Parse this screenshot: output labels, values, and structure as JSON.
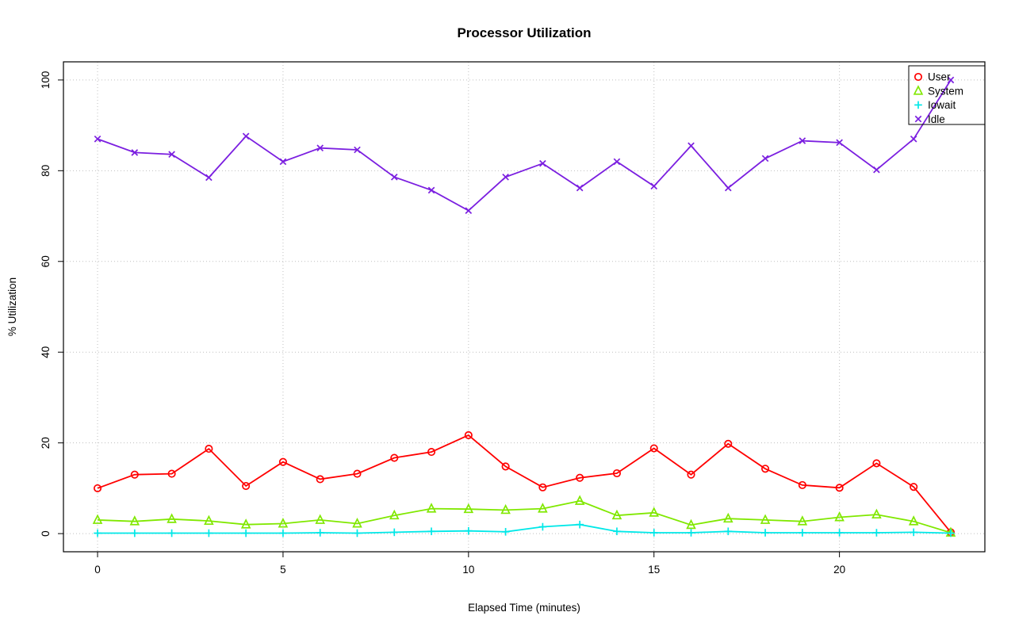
{
  "chart_data": {
    "type": "line",
    "title": "Processor Utilization",
    "xlabel": "Elapsed Time (minutes)",
    "ylabel": "% Utilization",
    "x": [
      0,
      1,
      2,
      3,
      4,
      5,
      6,
      7,
      8,
      9,
      10,
      11,
      12,
      13,
      14,
      15,
      16,
      17,
      18,
      19,
      20,
      21,
      22,
      23
    ],
    "series": [
      {
        "name": "User",
        "color": "#FF0000",
        "marker": "circle",
        "values": [
          10,
          13,
          13.2,
          18.7,
          10.5,
          15.8,
          12,
          13.2,
          16.7,
          18,
          21.7,
          14.8,
          10.2,
          12.3,
          13.3,
          18.8,
          13,
          19.8,
          14.3,
          10.7,
          10.1,
          15.5,
          10.3,
          0.3
        ]
      },
      {
        "name": "System",
        "color": "#80E800",
        "marker": "triangle",
        "values": [
          3,
          2.7,
          3.2,
          2.8,
          2,
          2.2,
          3,
          2.2,
          4,
          5.5,
          5.4,
          5.2,
          5.5,
          7.2,
          4,
          4.6,
          1.9,
          3.3,
          3,
          2.7,
          3.6,
          4.2,
          2.7,
          0.2
        ]
      },
      {
        "name": "Iowait",
        "color": "#00E8E8",
        "marker": "plus",
        "values": [
          0.1,
          0.1,
          0.1,
          0.1,
          0.1,
          0.1,
          0.2,
          0.1,
          0.3,
          0.5,
          0.6,
          0.4,
          1.5,
          2,
          0.5,
          0.2,
          0.2,
          0.5,
          0.2,
          0.2,
          0.2,
          0.2,
          0.3,
          0.1
        ]
      },
      {
        "name": "Idle",
        "color": "#7B1FE0",
        "marker": "x",
        "values": [
          87,
          84,
          83.6,
          78.5,
          87.6,
          82,
          85,
          84.6,
          78.6,
          75.7,
          71.2,
          78.6,
          81.6,
          76.2,
          82,
          76.6,
          85.5,
          76.2,
          82.7,
          86.6,
          86.2,
          80.2,
          87,
          100
        ]
      }
    ],
    "xticks": [
      0,
      5,
      10,
      15,
      20
    ],
    "yticks": [
      0,
      20,
      40,
      60,
      80,
      100
    ],
    "xlim": [
      -0.92,
      23.92
    ],
    "ylim": [
      -4,
      104
    ],
    "grid": true,
    "grid_color": "#BFBFBF",
    "frame_color": "#000000",
    "legend": {
      "position": "top-right",
      "entries": [
        "User",
        "System",
        "Iowait",
        "Idle"
      ]
    }
  }
}
